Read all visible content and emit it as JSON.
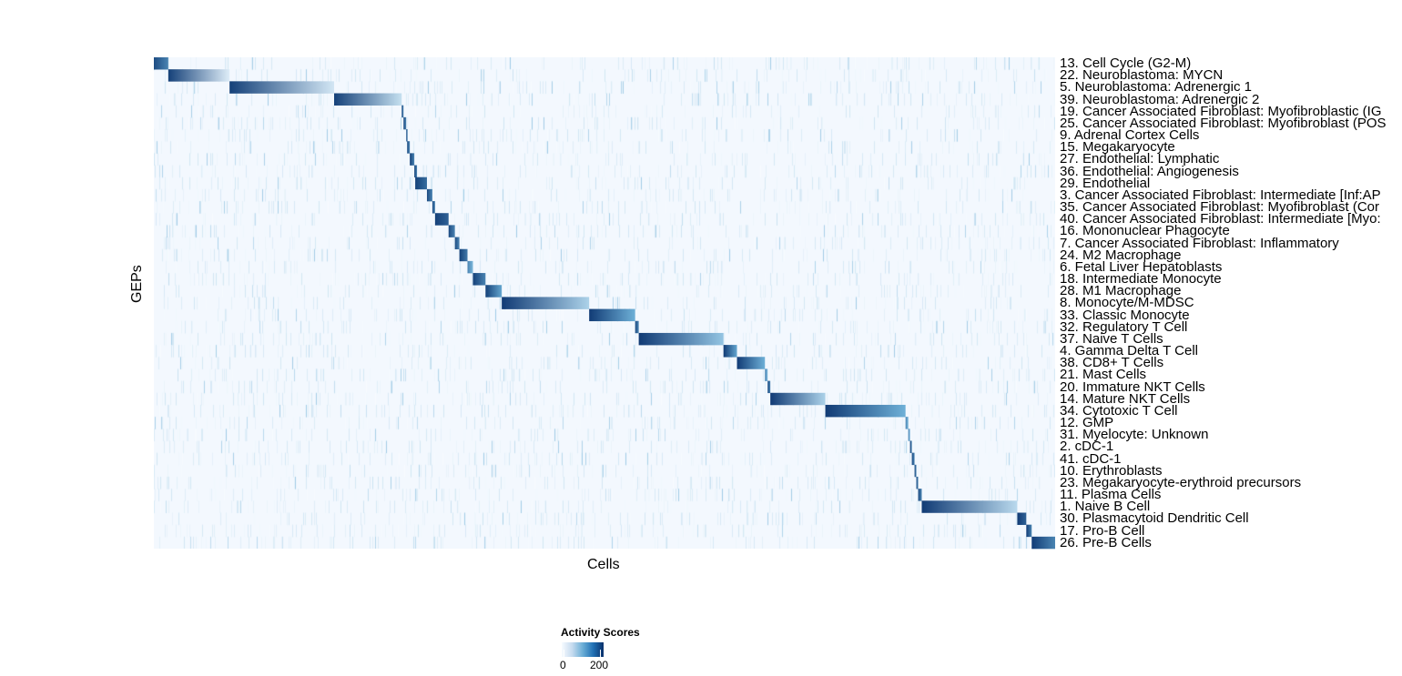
{
  "chart_data": {
    "type": "heatmap",
    "title": "",
    "xlabel": "Cells",
    "ylabel": "GEPs",
    "x_unit_note": "cells ordered; block ranges as percent of ordered cells",
    "color_scale": {
      "title": "Activity Scores",
      "low": "#f7fbff",
      "high": "#08306b",
      "range": [
        0,
        225
      ],
      "ticks": [
        0,
        200
      ],
      "tick_labels": [
        "0",
        "200"
      ]
    },
    "rows": [
      {
        "label": "13. Cell Cycle (G2-M)",
        "start": 0,
        "end": 1.6,
        "peak": 200,
        "tail": 150
      },
      {
        "label": "22. Neuroblastoma: MYCN",
        "start": 1.6,
        "end": 8.4,
        "peak": 210,
        "tail": 20
      },
      {
        "label": "5. Neuroblastoma: Adrenergic 1",
        "start": 8.4,
        "end": 20.0,
        "peak": 210,
        "tail": 30
      },
      {
        "label": "39. Neuroblastoma: Adrenergic 2",
        "start": 20.0,
        "end": 27.5,
        "peak": 210,
        "tail": 40
      },
      {
        "label": "19. Cancer Associated Fibroblast: Myofibroblastic (IG",
        "start": 27.5,
        "end": 27.7,
        "peak": 200,
        "tail": 150
      },
      {
        "label": "25. Cancer Associated Fibroblast: Myofibroblast (POS",
        "start": 27.7,
        "end": 28.0,
        "peak": 200,
        "tail": 150
      },
      {
        "label": "9. Adrenal Cortex Cells",
        "start": 28.0,
        "end": 28.1,
        "peak": 200,
        "tail": 150
      },
      {
        "label": "15. Megakaryocyte",
        "start": 28.1,
        "end": 28.4,
        "peak": 200,
        "tail": 150
      },
      {
        "label": "27. Endothelial: Lymphatic",
        "start": 28.4,
        "end": 28.9,
        "peak": 210,
        "tail": 150
      },
      {
        "label": "36. Endothelial: Angiogenesis",
        "start": 28.9,
        "end": 29.2,
        "peak": 210,
        "tail": 150
      },
      {
        "label": "29. Endothelial",
        "start": 29.0,
        "end": 30.3,
        "peak": 210,
        "tail": 170
      },
      {
        "label": "3. Cancer Associated Fibroblast: Intermediate [Inf:AP",
        "start": 30.3,
        "end": 30.9,
        "peak": 200,
        "tail": 150
      },
      {
        "label": "35. Cancer Associated Fibroblast: Myofibroblast (Cor",
        "start": 30.9,
        "end": 31.2,
        "peak": 200,
        "tail": 150
      },
      {
        "label": "40. Cancer Associated Fibroblast: Intermediate [Myo:",
        "start": 31.2,
        "end": 32.7,
        "peak": 210,
        "tail": 180
      },
      {
        "label": "16. Mononuclear Phagocyte",
        "start": 32.7,
        "end": 33.4,
        "peak": 200,
        "tail": 150
      },
      {
        "label": "7. Cancer Associated Fibroblast: Inflammatory",
        "start": 33.4,
        "end": 33.9,
        "peak": 200,
        "tail": 150
      },
      {
        "label": "24. M2 Macrophage",
        "start": 33.9,
        "end": 34.8,
        "peak": 210,
        "tail": 160
      },
      {
        "label": "6. Fetal Liver Hepatoblasts",
        "start": 34.8,
        "end": 35.4,
        "peak": 150,
        "tail": 100
      },
      {
        "label": "18. Intermediate Monocyte",
        "start": 35.4,
        "end": 36.8,
        "peak": 210,
        "tail": 150
      },
      {
        "label": "28. M1 Macrophage",
        "start": 36.8,
        "end": 38.6,
        "peak": 210,
        "tail": 120
      },
      {
        "label": "8. Monocyte/M-MDSC",
        "start": 38.6,
        "end": 48.3,
        "peak": 215,
        "tail": 60
      },
      {
        "label": "33. Classic Monocyte",
        "start": 48.3,
        "end": 53.4,
        "peak": 215,
        "tail": 110
      },
      {
        "label": "32. Regulatory T Cell",
        "start": 53.4,
        "end": 53.8,
        "peak": 200,
        "tail": 150
      },
      {
        "label": "37. Naive T Cells",
        "start": 53.8,
        "end": 63.2,
        "peak": 215,
        "tail": 80
      },
      {
        "label": "4. Gamma Delta T Cell",
        "start": 63.2,
        "end": 64.7,
        "peak": 215,
        "tail": 120
      },
      {
        "label": "38. CD8+ T Cells",
        "start": 64.7,
        "end": 67.8,
        "peak": 215,
        "tail": 110
      },
      {
        "label": "21. Mast Cells",
        "start": 67.8,
        "end": 68.1,
        "peak": 150,
        "tail": 100
      },
      {
        "label": "20. Immature NKT Cells",
        "start": 68.1,
        "end": 68.4,
        "peak": 200,
        "tail": 150
      },
      {
        "label": "14. Mature NKT Cells",
        "start": 68.4,
        "end": 74.5,
        "peak": 215,
        "tail": 60
      },
      {
        "label": "34. Cytotoxic T Cell",
        "start": 74.5,
        "end": 83.4,
        "peak": 215,
        "tail": 110
      },
      {
        "label": "12. GMP",
        "start": 83.4,
        "end": 83.7,
        "peak": 150,
        "tail": 100
      },
      {
        "label": "31. Myelocyte: Unknown",
        "start": 83.7,
        "end": 83.9,
        "peak": 150,
        "tail": 100
      },
      {
        "label": "2. cDC-1",
        "start": 83.9,
        "end": 84.1,
        "peak": 210,
        "tail": 150
      },
      {
        "label": "41. cDC-1",
        "start": 84.1,
        "end": 84.4,
        "peak": 200,
        "tail": 150
      },
      {
        "label": "10. Erythroblasts",
        "start": 84.4,
        "end": 84.6,
        "peak": 200,
        "tail": 150
      },
      {
        "label": "23. Megakaryocyte-erythroid precursors",
        "start": 84.6,
        "end": 84.8,
        "peak": 200,
        "tail": 150
      },
      {
        "label": "11. Plasma Cells",
        "start": 84.8,
        "end": 85.2,
        "peak": 200,
        "tail": 150
      },
      {
        "label": "1. Naive B Cell",
        "start": 85.2,
        "end": 95.8,
        "peak": 215,
        "tail": 50
      },
      {
        "label": "30. Plasmacytoid Dendritic Cell",
        "start": 95.8,
        "end": 96.8,
        "peak": 215,
        "tail": 180
      },
      {
        "label": "17. Pro-B Cell",
        "start": 96.8,
        "end": 97.4,
        "peak": 215,
        "tail": 150
      },
      {
        "label": "26. Pre-B Cells",
        "start": 97.4,
        "end": 100,
        "peak": 215,
        "tail": 150
      }
    ],
    "grid": false,
    "legend_placement": "bottom"
  }
}
